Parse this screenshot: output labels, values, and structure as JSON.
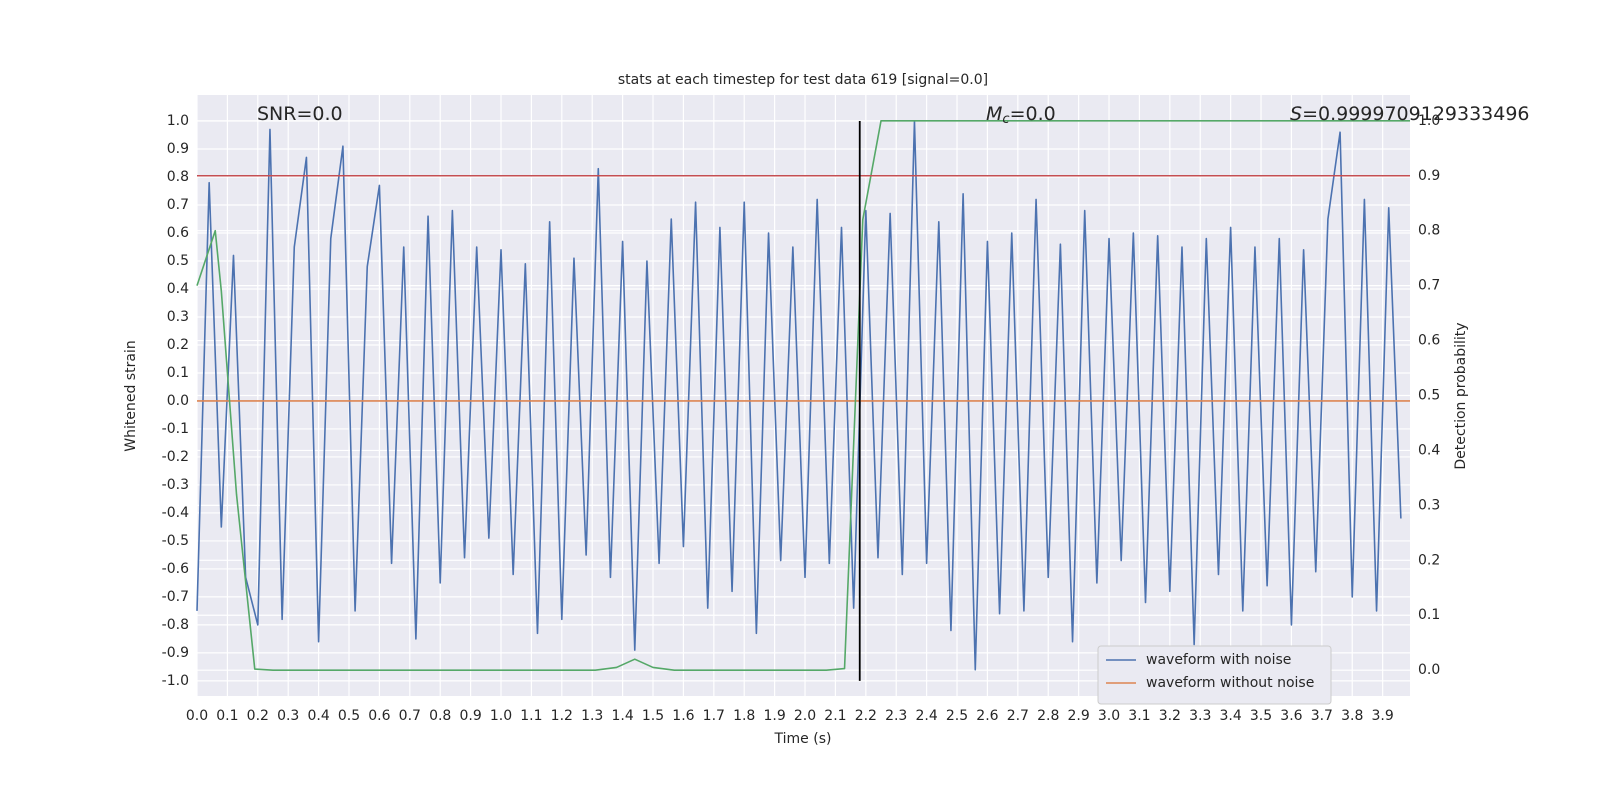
{
  "chart_data": {
    "type": "line",
    "title": "stats at each timestep for test data 619 [signal=0.0]",
    "xlabel": "Time (s)",
    "ylabel": "Whitened strain",
    "y2label": "Detection probability",
    "annotations": [
      {
        "parts": [
          "SNR=0.0"
        ]
      },
      {
        "parts": [
          "M",
          "c",
          "=0.0"
        ]
      },
      {
        "parts": [
          "S",
          "=0.9999709129333496"
        ]
      }
    ],
    "xlim": [
      0,
      3.99
    ],
    "ylim": [
      -1.054,
      1.093
    ],
    "y2lim": [
      -0.047,
      1.047
    ],
    "xticks": [
      {
        "value": 0,
        "label": "0.0"
      },
      0.1,
      0.2,
      0.3,
      0.4,
      0.5,
      0.6,
      0.7,
      0.8,
      0.9,
      {
        "value": 1,
        "label": "1.0"
      },
      1.1,
      1.2,
      1.3,
      1.4,
      1.5,
      1.6,
      1.7,
      1.8,
      1.9,
      {
        "value": 2,
        "label": "2.0"
      },
      2.1,
      2.2,
      2.3,
      2.4,
      2.5,
      2.6,
      2.7,
      2.8,
      2.9,
      {
        "value": 3,
        "label": "3.0"
      },
      3.1,
      3.2,
      3.3,
      3.4,
      3.5,
      3.6,
      3.7,
      3.8,
      3.9
    ],
    "yticks": [
      {
        "value": -1,
        "label": "-1.0"
      },
      -0.9,
      -0.8,
      -0.7,
      -0.6,
      -0.5,
      -0.4,
      -0.3,
      -0.2,
      -0.1,
      {
        "value": 0,
        "label": "0.0"
      },
      0.1,
      0.2,
      0.3,
      0.4,
      0.5,
      0.6,
      0.7,
      0.8,
      0.9,
      {
        "value": 1,
        "label": "1.0"
      }
    ],
    "y2ticks": [
      {
        "value": 0,
        "label": "0.0"
      },
      0.1,
      0.2,
      0.3,
      0.4,
      0.5,
      0.6,
      0.7,
      0.8,
      0.9,
      {
        "value": 1,
        "label": "1.0"
      }
    ],
    "grid": true,
    "legend": "lower right",
    "threshold": {
      "value": 0.9,
      "axis": "y2",
      "color": "#c44e52"
    },
    "marker_x": {
      "value": 2.18,
      "color": "#000000"
    },
    "series": [
      {
        "name": "waveform with noise",
        "color": "#4c72b0",
        "x": [
          0,
          0.04,
          0.08,
          0.12,
          0.16,
          0.2,
          0.24,
          0.28,
          0.32,
          0.36,
          0.4,
          0.44,
          0.48,
          0.52,
          0.56,
          0.6,
          0.64,
          0.68,
          0.72,
          0.76,
          0.8,
          0.84,
          0.88,
          0.92,
          0.96,
          1.0,
          1.04,
          1.08,
          1.12,
          1.16,
          1.2,
          1.24,
          1.28,
          1.32,
          1.36,
          1.4,
          1.44,
          1.48,
          1.52,
          1.56,
          1.6,
          1.64,
          1.68,
          1.72,
          1.76,
          1.8,
          1.84,
          1.88,
          1.92,
          1.96,
          2.0,
          2.04,
          2.08,
          2.12,
          2.16,
          2.2,
          2.24,
          2.28,
          2.32,
          2.36,
          2.4,
          2.44,
          2.48,
          2.52,
          2.56,
          2.6,
          2.64,
          2.68,
          2.72,
          2.76,
          2.8,
          2.84,
          2.88,
          2.92,
          2.96,
          3.0,
          3.04,
          3.08,
          3.12,
          3.16,
          3.2,
          3.24,
          3.28,
          3.32,
          3.36,
          3.4,
          3.44,
          3.48,
          3.52,
          3.56,
          3.6,
          3.64,
          3.68,
          3.72,
          3.76,
          3.8,
          3.84,
          3.88,
          3.92,
          3.96
        ],
        "values": [
          -0.75,
          0.78,
          -0.45,
          0.52,
          -0.63,
          -0.8,
          0.97,
          -0.78,
          0.55,
          0.87,
          -0.86,
          0.58,
          0.91,
          -0.75,
          0.48,
          0.77,
          -0.58,
          0.55,
          -0.85,
          0.66,
          -0.65,
          0.68,
          -0.56,
          0.55,
          -0.49,
          0.54,
          -0.62,
          0.49,
          -0.83,
          0.64,
          -0.78,
          0.51,
          -0.55,
          0.83,
          -0.63,
          0.57,
          -0.89,
          0.5,
          -0.58,
          0.65,
          -0.52,
          0.71,
          -0.74,
          0.62,
          -0.68,
          0.71,
          -0.83,
          0.6,
          -0.57,
          0.55,
          -0.63,
          0.72,
          -0.58,
          0.62,
          -0.74,
          0.68,
          -0.56,
          0.67,
          -0.62,
          1.0,
          -0.58,
          0.64,
          -0.82,
          0.74,
          -0.96,
          0.57,
          -0.76,
          0.6,
          -0.75,
          0.72,
          -0.63,
          0.56,
          -0.86,
          0.68,
          -0.65,
          0.58,
          -0.57,
          0.6,
          -0.72,
          0.59,
          -0.68,
          0.55,
          -0.87,
          0.58,
          -0.62,
          0.62,
          -0.75,
          0.55,
          -0.66,
          0.58,
          -0.8,
          0.54,
          -0.61,
          0.65,
          0.96,
          -0.7,
          0.72,
          -0.75,
          0.69,
          -0.42
        ]
      },
      {
        "name": "waveform without noise",
        "color": "#dd8452",
        "x": [
          0,
          3.99
        ],
        "values": [
          0,
          0
        ]
      },
      {
        "color": "#55a868",
        "axis": "y2",
        "x": [
          0,
          0.06,
          0.08,
          0.13,
          0.19,
          0.25,
          1.31,
          1.38,
          1.44,
          1.5,
          1.57,
          2.07,
          2.13,
          2.19,
          2.25,
          3.99
        ],
        "values": [
          0.7,
          0.8,
          0.69,
          0.32,
          0.002,
          0,
          0,
          0.005,
          0.02,
          0.005,
          0,
          0,
          0.003,
          0.82,
          1.0,
          1.0
        ]
      }
    ]
  }
}
